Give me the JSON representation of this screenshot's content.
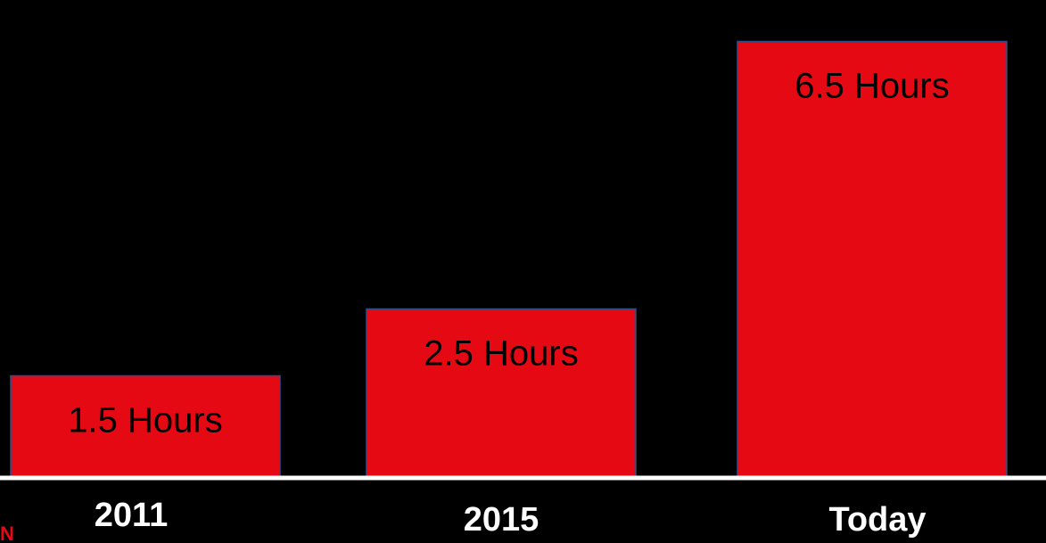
{
  "colors": {
    "background": "#000000",
    "bar_fill": "#e50914",
    "bar_stroke": "#2b4f8a",
    "bar_label_text": "#000000",
    "category_text": "#ffffff",
    "baseline": "#ffffff",
    "logo": "#e50914"
  },
  "logo_fragment": "N",
  "chart_data": {
    "type": "bar",
    "categories": [
      "2011",
      "2015",
      "Today"
    ],
    "values": [
      1.5,
      2.5,
      6.5
    ],
    "data_labels": [
      "1.5 Hours",
      "2.5 Hours",
      "6.5 Hours"
    ],
    "title": "",
    "xlabel": "",
    "ylabel": "",
    "ylim": [
      0,
      6.9
    ],
    "grid": false,
    "legend": "none"
  }
}
